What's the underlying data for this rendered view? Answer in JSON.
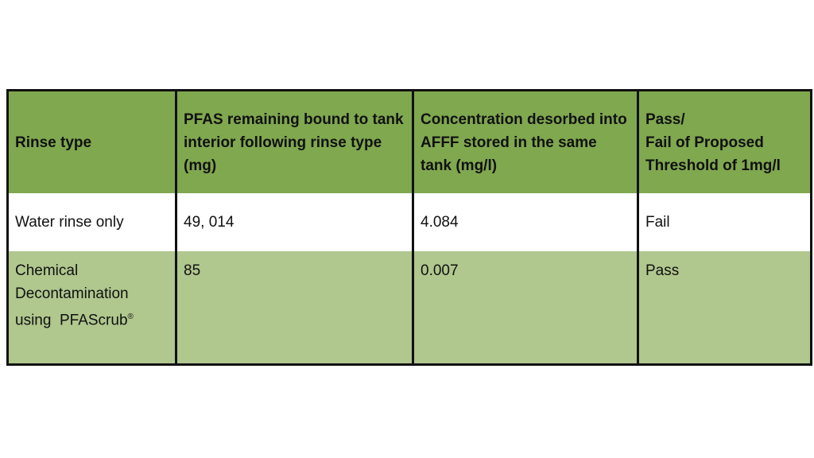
{
  "colors": {
    "header": "#80a84f",
    "row_alt": "#b0c78e",
    "row": "#ffffff",
    "border": "#111111"
  },
  "headers": [
    "Rinse type",
    "PFAS remaining bound to tank interior following rinse type (mg)",
    "Concentration desorbed into AFFF stored in the same tank (mg/l)",
    "Pass/ Fail of Proposed Threshold of 1mg/l"
  ],
  "rows": [
    {
      "rinse_type": "Water rinse only",
      "pfas_remaining": "49, 014",
      "concentration": "4.084",
      "result": "Fail"
    },
    {
      "rinse_type": "Chemical Decontamination using  PFAScrub",
      "rinse_type_mark": "®",
      "pfas_remaining": "85",
      "concentration": "0.007",
      "result": "Pass"
    }
  ]
}
